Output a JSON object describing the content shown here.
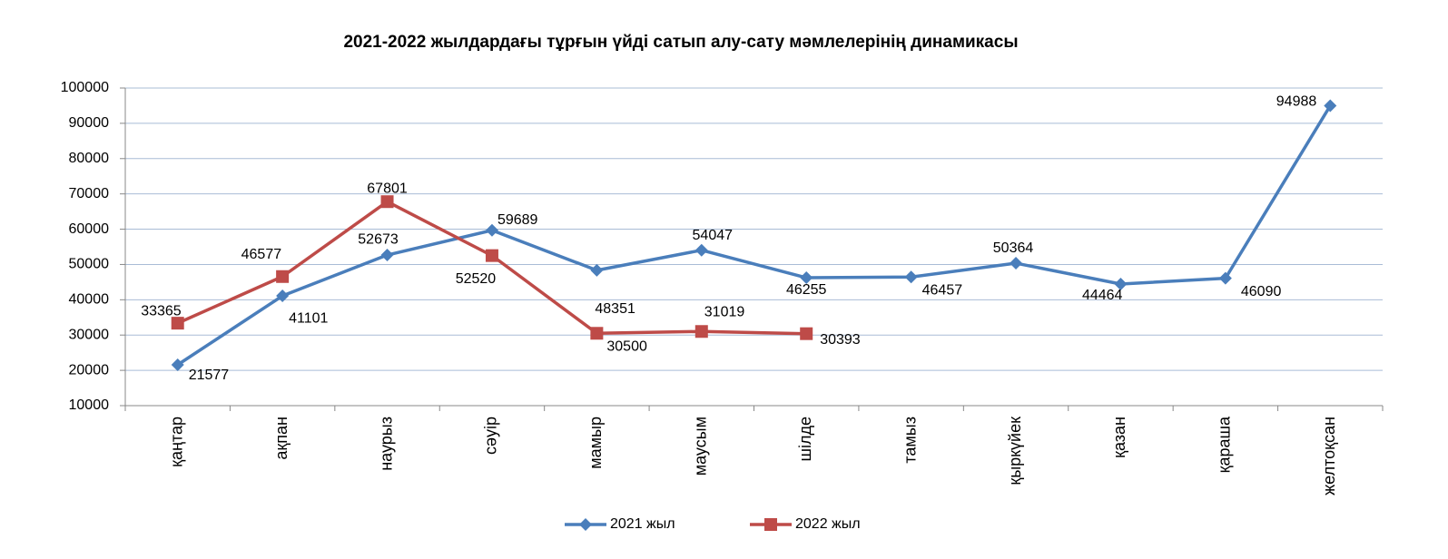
{
  "chart_data": {
    "type": "line",
    "title": "2021-2022 жылдардағы тұрғын үйді сатып алу-сату мәмлелерінің динамикасы",
    "categories": [
      "қаңтар",
      "ақпан",
      "наурыз",
      "сәуір",
      "мамыр",
      "маусым",
      "шілде",
      "тамыз",
      "қыркүйек",
      "қазан",
      "қараша",
      "желтоқсан"
    ],
    "series": [
      {
        "name": "2021 жыл",
        "color": "#4a7ebb",
        "marker": "diamond",
        "values": [
          21577,
          41101,
          52673,
          59689,
          48351,
          54047,
          46255,
          46457,
          50364,
          44464,
          46090,
          94988
        ]
      },
      {
        "name": "2022 жыл",
        "color": "#be4b48",
        "marker": "square",
        "values": [
          33365,
          46577,
          67801,
          52520,
          30500,
          31019,
          30393,
          null,
          null,
          null,
          null,
          null
        ]
      }
    ],
    "ylim": [
      10000,
      100000
    ],
    "yticks": [
      10000,
      20000,
      30000,
      40000,
      50000,
      60000,
      70000,
      80000,
      90000,
      100000
    ],
    "grid": true,
    "legend": "bottom"
  }
}
